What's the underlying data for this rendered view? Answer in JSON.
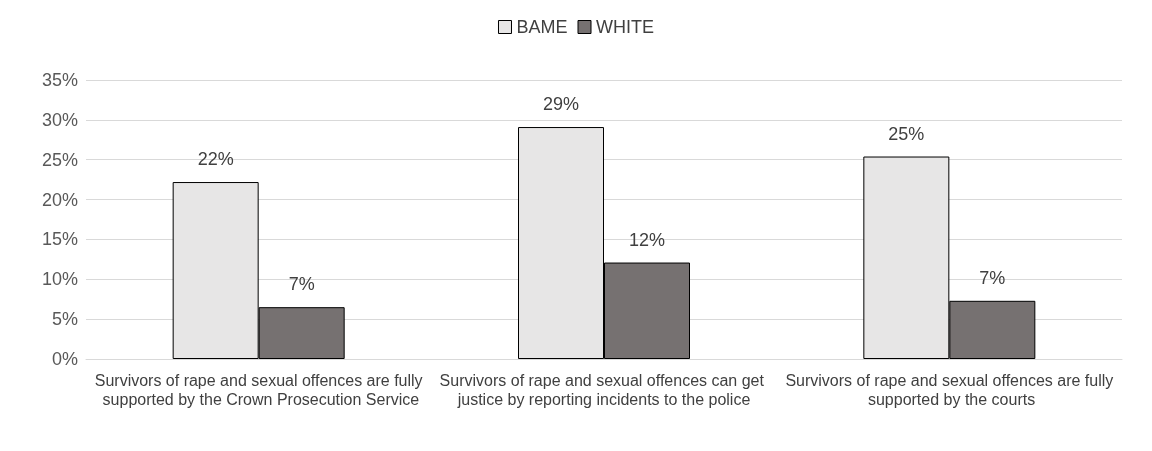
{
  "chart_data": {
    "type": "bar",
    "categories": [
      "Survivors of rape and sexual offences are fully supported by the Crown Prosecution Service",
      "Survivors of rape and sexual offences can get justice by reporting incidents to the police",
      "Survivors of rape and sexual offences are fully supported by the courts"
    ],
    "series": [
      {
        "name": "BAME",
        "color": "#e7e6e6",
        "values": [
          22.2,
          29.1,
          25.4
        ],
        "value_labels": [
          "22%",
          "29%",
          "25%"
        ]
      },
      {
        "name": "WHITE",
        "color": "#767171",
        "values": [
          6.5,
          12.1,
          7.3
        ],
        "value_labels": [
          "7%",
          "12%",
          "7%"
        ]
      }
    ],
    "ylim": [
      0,
      35
    ],
    "yticks": [
      {
        "value": 0,
        "label": "0%"
      },
      {
        "value": 5,
        "label": "5%"
      },
      {
        "value": 10,
        "label": "10%"
      },
      {
        "value": 15,
        "label": "15%"
      },
      {
        "value": 20,
        "label": "20%"
      },
      {
        "value": 25,
        "label": "25%"
      },
      {
        "value": 30,
        "label": "30%"
      },
      {
        "value": 35,
        "label": "35%"
      }
    ],
    "grid": "y",
    "legend": "top"
  }
}
